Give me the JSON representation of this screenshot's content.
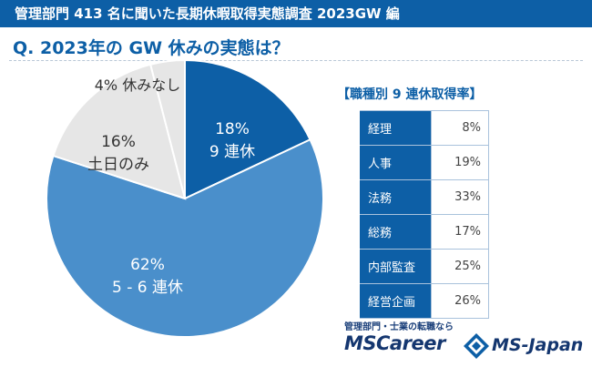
{
  "header": {
    "title": "管理部門 413 名に聞いた長期休暇取得実態調査 2023GW 編"
  },
  "question": {
    "text": "Q. 2023年の GW 休みの実態は？"
  },
  "colors": {
    "brand": "#0d5fa6",
    "medium": "#4a8fcb",
    "light_gray": "#e6e6e6"
  },
  "chart_data": [
    {
      "type": "pie",
      "slices": [
        {
          "pct_label": "18%",
          "label": "9 連休",
          "value": 18,
          "color": "#0d5fa6",
          "text_color": "#ffffff"
        },
        {
          "pct_label": "62%",
          "label": "5 - 6 連休",
          "value": 62,
          "color": "#4a8fcb",
          "text_color": "#ffffff"
        },
        {
          "pct_label": "16%",
          "label": "土日のみ",
          "value": 16,
          "color": "#e6e6e6",
          "text_color": "#333333"
        },
        {
          "pct_label": "",
          "label": "4% 休みなし",
          "value": 4,
          "color": "#e6e6e6",
          "text_color": "#333333"
        }
      ]
    },
    {
      "type": "table",
      "title": "【職種別 9 連休取得率】",
      "rows": [
        {
          "job": "経理",
          "rate": "8%"
        },
        {
          "job": "人事",
          "rate": "19%"
        },
        {
          "job": "法務",
          "rate": "33%"
        },
        {
          "job": "総務",
          "rate": "17%"
        },
        {
          "job": "内部監査",
          "rate": "25%"
        },
        {
          "job": "経営企画",
          "rate": "26%"
        }
      ]
    }
  ],
  "logos": {
    "tagline": "管理部門・士業の転職なら",
    "mscareer": "MSCareer",
    "msjapan": "MS-Japan"
  }
}
